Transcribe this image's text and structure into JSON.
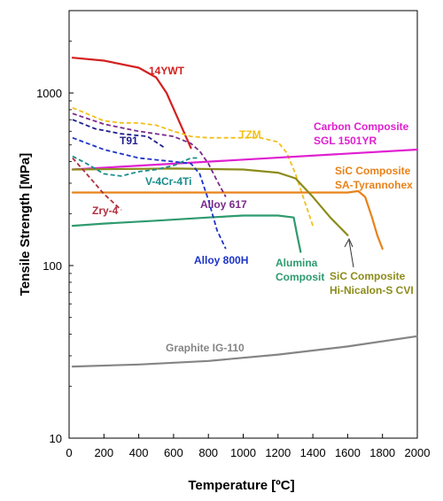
{
  "chart_data": {
    "type": "line",
    "xlabel": "Temperature [ºC]",
    "ylabel": "Tensile Strength [MPa]",
    "xlim": [
      0,
      2000
    ],
    "ylim": [
      10,
      3000
    ],
    "yscale": "log",
    "grid": false,
    "legend": "none",
    "x_ticks": [
      0,
      200,
      400,
      600,
      800,
      1000,
      1200,
      1400,
      1600,
      1800,
      2000
    ],
    "y_ticks": [
      10,
      100,
      1000
    ],
    "series": [
      {
        "label": "14YWT",
        "color": "#d42020",
        "dashed": false,
        "x": [
          20,
          200,
          400,
          500,
          560,
          620,
          700
        ],
        "y": [
          1600,
          1540,
          1400,
          1230,
          1000,
          730,
          480
        ]
      },
      {
        "label": "TZM",
        "color": "#f2c01a",
        "dashed": true,
        "x": [
          20,
          100,
          200,
          300,
          400,
          500,
          600,
          700,
          800,
          900,
          1000,
          1100,
          1200,
          1250,
          1300,
          1350,
          1400
        ],
        "y": [
          820,
          760,
          690,
          670,
          670,
          650,
          600,
          560,
          550,
          550,
          550,
          550,
          520,
          450,
          340,
          240,
          170
        ]
      },
      {
        "label": "Carbon Composite SGL 1501YR",
        "color": "#e020d0",
        "dashed": false,
        "x": [
          20,
          2000
        ],
        "y": [
          360,
          470
        ]
      },
      {
        "label": "SiC Composite SA-Tyrannohex",
        "color": "#e8821a",
        "dashed": false,
        "x": [
          20,
          1000,
          1600,
          1660,
          1700,
          1740,
          1770,
          1800
        ],
        "y": [
          265,
          265,
          265,
          270,
          250,
          190,
          150,
          125
        ]
      },
      {
        "label": "SiC Composite Hi-Nicalon-S CVI",
        "color": "#8c8c1c",
        "dashed": false,
        "x": [
          20,
          600,
          1000,
          1200,
          1300,
          1400,
          1500,
          1600
        ],
        "y": [
          360,
          365,
          360,
          345,
          320,
          250,
          190,
          150
        ]
      },
      {
        "label": "Alumina Composit",
        "color": "#2e9a6e",
        "dashed": false,
        "x": [
          20,
          200,
          500,
          800,
          1000,
          1200,
          1290,
          1310,
          1330
        ],
        "y": [
          170,
          175,
          182,
          190,
          195,
          195,
          190,
          150,
          120
        ]
      },
      {
        "label": "Alloy 617",
        "color": "#7a2a8a",
        "dashed": true,
        "x": [
          20,
          200,
          400,
          600,
          700,
          750,
          800,
          850,
          900
        ],
        "y": [
          760,
          660,
          600,
          560,
          510,
          460,
          390,
          310,
          250
        ]
      },
      {
        "label": "T91",
        "color": "#1e1e8c",
        "dashed": true,
        "x": [
          20,
          150,
          300,
          450,
          550
        ],
        "y": [
          700,
          620,
          580,
          560,
          480
        ]
      },
      {
        "label": "Alloy 800H",
        "color": "#1c34c8",
        "dashed": true,
        "x": [
          20,
          200,
          400,
          600,
          700,
          750,
          800,
          850,
          900
        ],
        "y": [
          550,
          470,
          420,
          400,
          390,
          340,
          240,
          160,
          125
        ]
      },
      {
        "label": "V-4Cr-4Ti",
        "color": "#1a8c8c",
        "dashed": true,
        "x": [
          20,
          100,
          200,
          300,
          400,
          500,
          600,
          700,
          750
        ],
        "y": [
          430,
          390,
          340,
          330,
          350,
          360,
          380,
          420,
          420
        ]
      },
      {
        "label": "Zry-4",
        "color": "#b03040",
        "dashed": true,
        "x": [
          20,
          100,
          200,
          300
        ],
        "y": [
          420,
          340,
          260,
          210
        ]
      },
      {
        "label": "Graphite IG-110",
        "color": "#858585",
        "dashed": false,
        "x": [
          20,
          400,
          800,
          1200,
          1600,
          2000
        ],
        "y": [
          26,
          26.7,
          28,
          30.5,
          34,
          39
        ]
      }
    ]
  }
}
